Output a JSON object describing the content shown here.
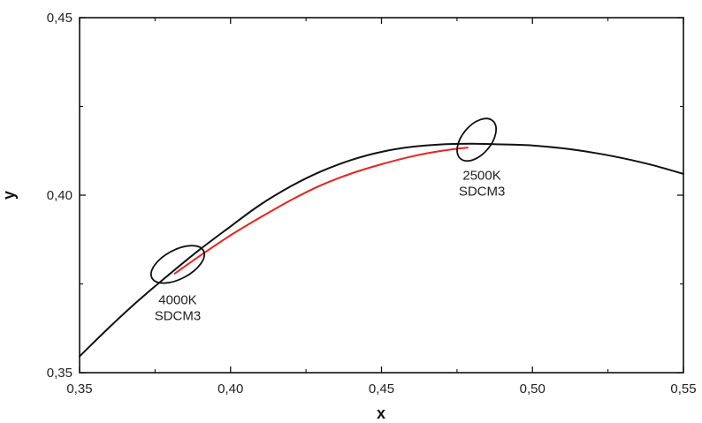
{
  "chart_data": {
    "type": "line",
    "xlabel": "x",
    "ylabel": "y",
    "xlim": [
      0.35,
      0.55
    ],
    "ylim": [
      0.35,
      0.45
    ],
    "x_ticks": [
      "0,35",
      "0,40",
      "0,45",
      "0,50",
      "0,55"
    ],
    "y_ticks": [
      "0,35",
      "0,40",
      "0,45"
    ],
    "x_tick_values": [
      0.35,
      0.4,
      0.45,
      0.5,
      0.55
    ],
    "y_tick_values": [
      0.35,
      0.4,
      0.45
    ],
    "grid": false,
    "series": [
      {
        "color": "#111111",
        "x": [
          0.35,
          0.36,
          0.37,
          0.38,
          0.39,
          0.4,
          0.41,
          0.42,
          0.43,
          0.44,
          0.45,
          0.46,
          0.47,
          0.48,
          0.49,
          0.5,
          0.51,
          0.52,
          0.53,
          0.54,
          0.55
        ],
        "y": [
          0.3546,
          0.3629,
          0.3707,
          0.3779,
          0.3848,
          0.3912,
          0.3974,
          0.4025,
          0.4067,
          0.4099,
          0.4122,
          0.4136,
          0.4143,
          0.4145,
          0.4143,
          0.414,
          0.4132,
          0.412,
          0.4104,
          0.4084,
          0.406
        ]
      },
      {
        "color": "#e8231f",
        "x": [
          0.3815,
          0.39,
          0.4,
          0.41,
          0.42,
          0.43,
          0.44,
          0.45,
          0.46,
          0.47,
          0.4785
        ],
        "y": [
          0.3779,
          0.383,
          0.3887,
          0.3938,
          0.3986,
          0.4028,
          0.4061,
          0.4087,
          0.4109,
          0.4125,
          0.4134
        ]
      }
    ],
    "annotations": [
      {
        "lines": [
          "4000K",
          "SDCM3"
        ],
        "x": 0.3825,
        "y": 0.3805,
        "ellipse_rx": 0.0048,
        "ellipse_ry": 0.0082,
        "ellipse_angle_deg": 62
      },
      {
        "lines": [
          "2500K",
          "SDCM3"
        ],
        "x": 0.4815,
        "y": 0.4156,
        "ellipse_rx": 0.0048,
        "ellipse_ry": 0.007,
        "ellipse_angle_deg": 40
      }
    ]
  }
}
